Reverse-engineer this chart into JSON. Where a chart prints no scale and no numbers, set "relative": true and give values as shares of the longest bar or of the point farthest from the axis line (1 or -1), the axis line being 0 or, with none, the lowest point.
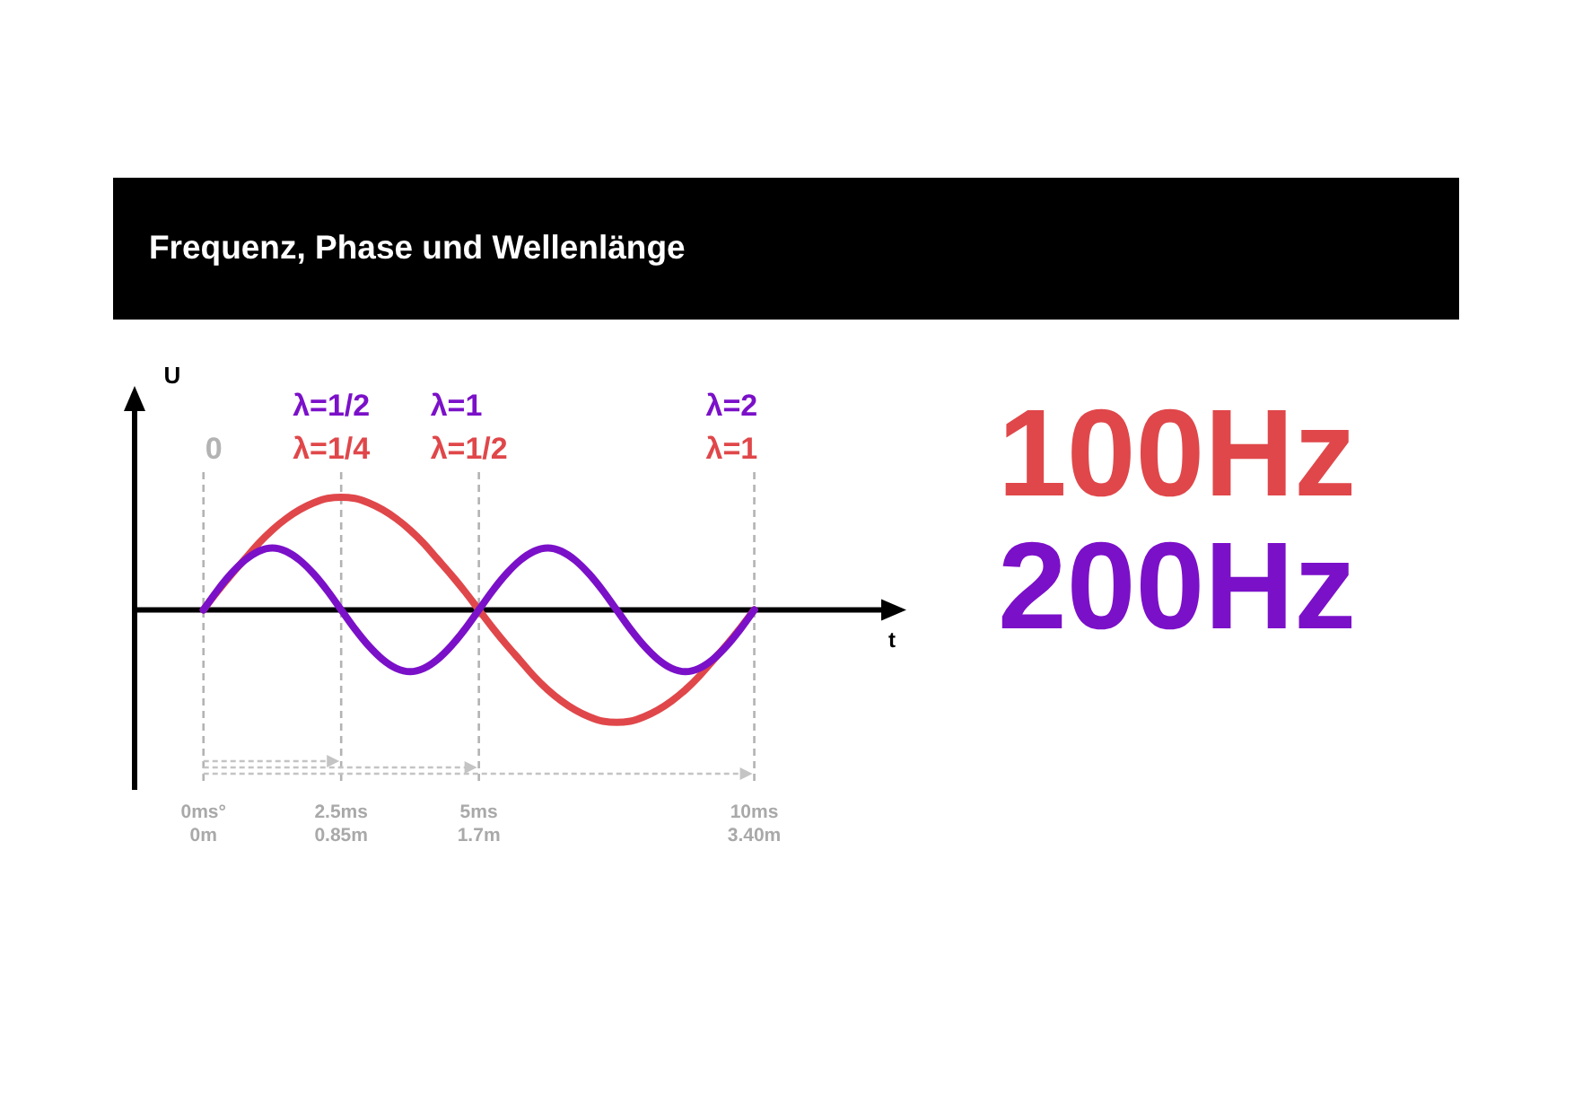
{
  "chart_data": {
    "type": "line",
    "title": "Frequenz, Phase und Wellenlänge",
    "xlabel": "t",
    "ylabel": "U",
    "relative": true,
    "x": [
      0,
      0.25,
      0.5,
      0.75,
      1,
      1.25,
      1.5,
      1.75,
      2,
      2.25,
      2.5,
      2.75,
      3,
      3.25,
      3.5,
      3.75,
      4,
      4.25,
      4.5,
      4.75,
      5,
      5.25,
      5.5,
      5.75,
      6,
      6.25,
      6.5,
      6.75,
      7,
      7.25,
      7.5,
      7.75,
      8,
      8.25,
      8.5,
      8.75,
      9,
      9.25,
      9.5,
      9.75,
      10
    ],
    "series": [
      {
        "name": "100Hz",
        "color": "#e0474a",
        "values": [
          0,
          0.16,
          0.31,
          0.45,
          0.59,
          0.71,
          0.81,
          0.89,
          0.95,
          0.99,
          1,
          0.99,
          0.95,
          0.89,
          0.81,
          0.71,
          0.59,
          0.45,
          0.31,
          0.16,
          0,
          -0.16,
          -0.31,
          -0.45,
          -0.59,
          -0.71,
          -0.81,
          -0.89,
          -0.95,
          -0.99,
          -1,
          -0.99,
          -0.95,
          -0.89,
          -0.81,
          -0.71,
          -0.59,
          -0.45,
          -0.31,
          -0.16,
          0
        ]
      },
      {
        "name": "200Hz",
        "color": "#7b10c9",
        "values": [
          0,
          0.17,
          0.32,
          0.44,
          0.52,
          0.55,
          0.52,
          0.44,
          0.32,
          0.17,
          0,
          -0.17,
          -0.32,
          -0.44,
          -0.52,
          -0.55,
          -0.52,
          -0.44,
          -0.32,
          -0.17,
          0,
          0.17,
          0.32,
          0.44,
          0.52,
          0.55,
          0.52,
          0.44,
          0.32,
          0.17,
          0,
          -0.17,
          -0.32,
          -0.44,
          -0.52,
          -0.55,
          -0.52,
          -0.44,
          -0.32,
          -0.17,
          0
        ]
      }
    ],
    "xlim": [
      -1.25,
      12.5
    ],
    "xticks": [
      {
        "value": 0,
        "label": "0ms°"
      },
      {
        "value": 2.5,
        "label": "2.5ms"
      },
      {
        "value": 5,
        "label": "5ms"
      },
      {
        "value": 10,
        "label": "10ms"
      }
    ],
    "x2lim": [
      0,
      3.4
    ],
    "x2ticks": [
      {
        "value": 0,
        "label": "0m"
      },
      {
        "value": 0.85,
        "label": "0.85m"
      },
      {
        "value": 1.7,
        "label": "1.7m"
      },
      {
        "value": 3.4,
        "label": "3.40m"
      }
    ],
    "ref_lines": [
      {
        "axis": "x",
        "value": 0,
        "label": "0",
        "color": "#b3b3b3",
        "line_style": "dashed"
      },
      {
        "axis": "x",
        "value": 2.5,
        "color": "#b3b3b3",
        "line_style": "dashed"
      },
      {
        "axis": "x",
        "value": 5,
        "color": "#b3b3b3",
        "line_style": "dashed"
      },
      {
        "axis": "x",
        "value": 10,
        "color": "#b3b3b3",
        "line_style": "dashed"
      }
    ],
    "annotations": [
      "λ=1/2",
      "λ=1/4",
      "λ=1",
      "λ=1/2",
      "λ=2",
      "λ=1"
    ],
    "legend": "right",
    "marker": "none",
    "line_style": "solid"
  }
}
